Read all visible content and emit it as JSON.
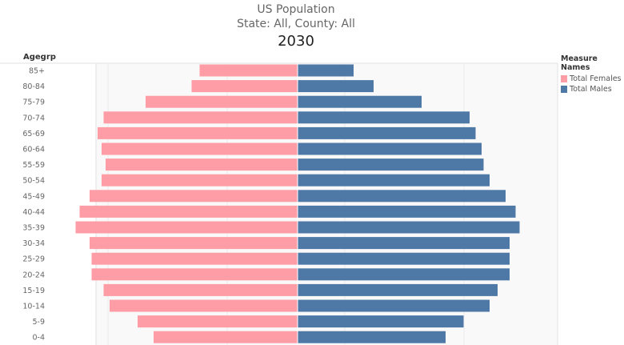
{
  "title": "US Population",
  "subtitle": "State: All, County: All",
  "year": "2030",
  "legend": {
    "title": "Measure Names",
    "items": [
      {
        "label": "Total Females",
        "color": "#ff9da7"
      },
      {
        "label": "Total Males",
        "color": "#4e79a7"
      }
    ]
  },
  "chart_data": {
    "type": "bar",
    "orientation": "horizontal-diverging",
    "title": "US Population",
    "ylabel": "Agegrp",
    "categories": [
      "85+",
      "80-84",
      "75-79",
      "70-74",
      "65-69",
      "60-64",
      "55-59",
      "50-54",
      "45-49",
      "40-44",
      "35-39",
      "30-34",
      "25-29",
      "20-24",
      "15-19",
      "10-14",
      "5-9",
      "0-4"
    ],
    "series": [
      {
        "name": "Total Females",
        "color": "#ff9da7",
        "side": "left",
        "values": [
          4.9,
          5.3,
          7.6,
          9.7,
          10.0,
          9.8,
          9.6,
          9.8,
          10.4,
          10.9,
          11.1,
          10.4,
          10.3,
          10.3,
          9.7,
          9.4,
          8.0,
          7.2
        ]
      },
      {
        "name": "Total Males",
        "color": "#4e79a7",
        "side": "right",
        "values": [
          2.8,
          3.8,
          6.2,
          8.6,
          8.9,
          9.2,
          9.3,
          9.6,
          10.4,
          10.9,
          11.1,
          10.6,
          10.6,
          10.6,
          10.0,
          9.6,
          8.3,
          7.4
        ]
      }
    ],
    "grid": true,
    "legend_position": "right"
  }
}
